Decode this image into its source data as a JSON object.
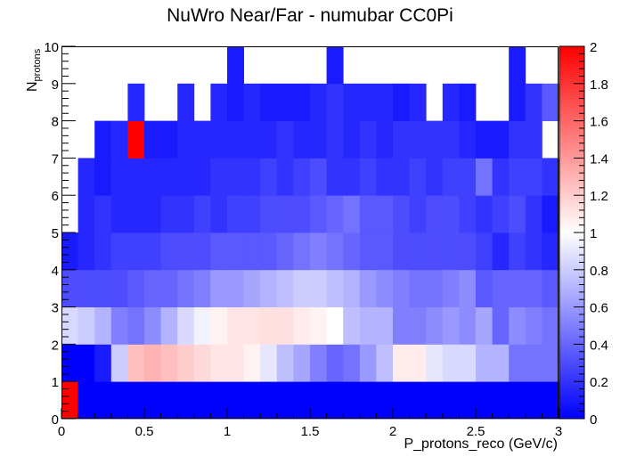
{
  "chart_data": {
    "type": "heatmap",
    "title": "NuWro Near/Far - numubar CC0Pi",
    "xlabel": "P_protons_reco (GeV/c)",
    "ylabel_main": "N",
    "ylabel_sub": "protons",
    "xlim": [
      0,
      3
    ],
    "ylim": [
      0,
      10
    ],
    "x_bin_width": 0.1,
    "y_bin_width": 1,
    "x_ticks": [
      "0",
      "0.5",
      "1",
      "1.5",
      "2",
      "2.5",
      "3"
    ],
    "y_ticks": [
      "0",
      "1",
      "2",
      "3",
      "4",
      "5",
      "6",
      "7",
      "8",
      "9",
      "10"
    ],
    "z_ticks": [
      "0",
      "0.2",
      "0.4",
      "0.6",
      "0.8",
      "1",
      "1.2",
      "1.4",
      "1.6",
      "1.8",
      "2"
    ],
    "zlim": [
      0,
      2
    ],
    "palette": [
      "#0000ff",
      "#ffffff",
      "#ff0000"
    ],
    "values": [
      [
        2.0,
        0,
        0,
        0,
        0,
        0,
        0,
        0,
        0,
        0,
        0,
        0,
        0,
        0,
        0,
        0,
        0,
        0,
        0,
        0,
        0,
        0,
        0,
        0,
        0,
        0,
        0,
        0,
        0,
        0
      ],
      [
        0,
        0,
        0.1,
        0.8,
        1.25,
        1.3,
        1.25,
        1.2,
        1.15,
        1.1,
        1.1,
        1.05,
        0.9,
        0.75,
        0.65,
        0.5,
        0.4,
        0.45,
        0.6,
        0.75,
        1.08,
        1.08,
        0.9,
        0.85,
        0.85,
        0.7,
        0.7,
        0.45,
        0.45,
        0.45
      ],
      [
        0.85,
        0.8,
        0.7,
        0.5,
        0.45,
        0.55,
        0.7,
        0.85,
        0.95,
        1.05,
        1.1,
        1.1,
        1.12,
        1.12,
        1.08,
        1.05,
        1.0,
        0.75,
        0.7,
        0.7,
        0.5,
        0.5,
        0.55,
        0.6,
        0.55,
        0.65,
        0.4,
        0.55,
        0.5,
        0.45
      ],
      [
        0.3,
        0.3,
        0.3,
        0.3,
        0.35,
        0.4,
        0.4,
        0.45,
        0.5,
        0.6,
        0.6,
        0.65,
        0.7,
        0.75,
        0.8,
        0.8,
        0.75,
        0.7,
        0.6,
        0.55,
        0.5,
        0.45,
        0.45,
        0.5,
        0.55,
        0.35,
        0.4,
        0.4,
        0.4,
        0.35
      ],
      [
        0.1,
        0.15,
        0.2,
        0.25,
        0.25,
        0.25,
        0.3,
        0.3,
        0.3,
        0.35,
        0.35,
        0.35,
        0.35,
        0.4,
        0.45,
        0.5,
        0.45,
        0.4,
        0.35,
        0.35,
        0.3,
        0.3,
        0.3,
        0.3,
        0.3,
        0.25,
        0.15,
        0.25,
        0.2,
        0.15
      ],
      [
        null,
        0.15,
        0.2,
        0.15,
        0.15,
        0.15,
        0.2,
        0.2,
        0.25,
        0.2,
        0.25,
        0.25,
        0.3,
        0.3,
        0.3,
        0.35,
        0.4,
        0.45,
        0.35,
        0.35,
        0.3,
        0.25,
        0.3,
        0.3,
        0.25,
        0.2,
        0.25,
        0.3,
        0.2,
        0.1
      ],
      [
        null,
        0.15,
        0.1,
        0.15,
        0.15,
        0.15,
        0.15,
        0.15,
        0.15,
        0.2,
        0.2,
        0.2,
        0.25,
        0.2,
        0.25,
        0.3,
        0.2,
        0.2,
        0.25,
        0.2,
        0.2,
        0.25,
        0.2,
        0.25,
        0.25,
        0.45,
        0.2,
        0.25,
        0.25,
        0.2
      ],
      [
        null,
        null,
        0.1,
        0.15,
        2.0,
        0.1,
        0.1,
        0.15,
        0.15,
        0.15,
        0.15,
        0.15,
        0.15,
        0.2,
        0.15,
        0.15,
        0.2,
        0.15,
        0.2,
        0.15,
        0.2,
        0.2,
        0.2,
        0.2,
        0.15,
        0.1,
        0.1,
        0.2,
        0.2,
        null
      ],
      [
        null,
        null,
        null,
        null,
        0.15,
        null,
        null,
        0.15,
        null,
        0.15,
        0.1,
        0.15,
        0.1,
        0.1,
        0.1,
        0.15,
        0.2,
        0.15,
        0.15,
        0.15,
        0.1,
        0.15,
        null,
        0.15,
        0.1,
        null,
        null,
        0.1,
        0.2,
        0.35
      ],
      [
        null,
        null,
        null,
        null,
        null,
        null,
        null,
        null,
        null,
        null,
        0.1,
        null,
        null,
        null,
        null,
        null,
        0.1,
        null,
        null,
        null,
        null,
        null,
        null,
        null,
        null,
        null,
        null,
        0.1,
        null,
        null
      ]
    ]
  }
}
